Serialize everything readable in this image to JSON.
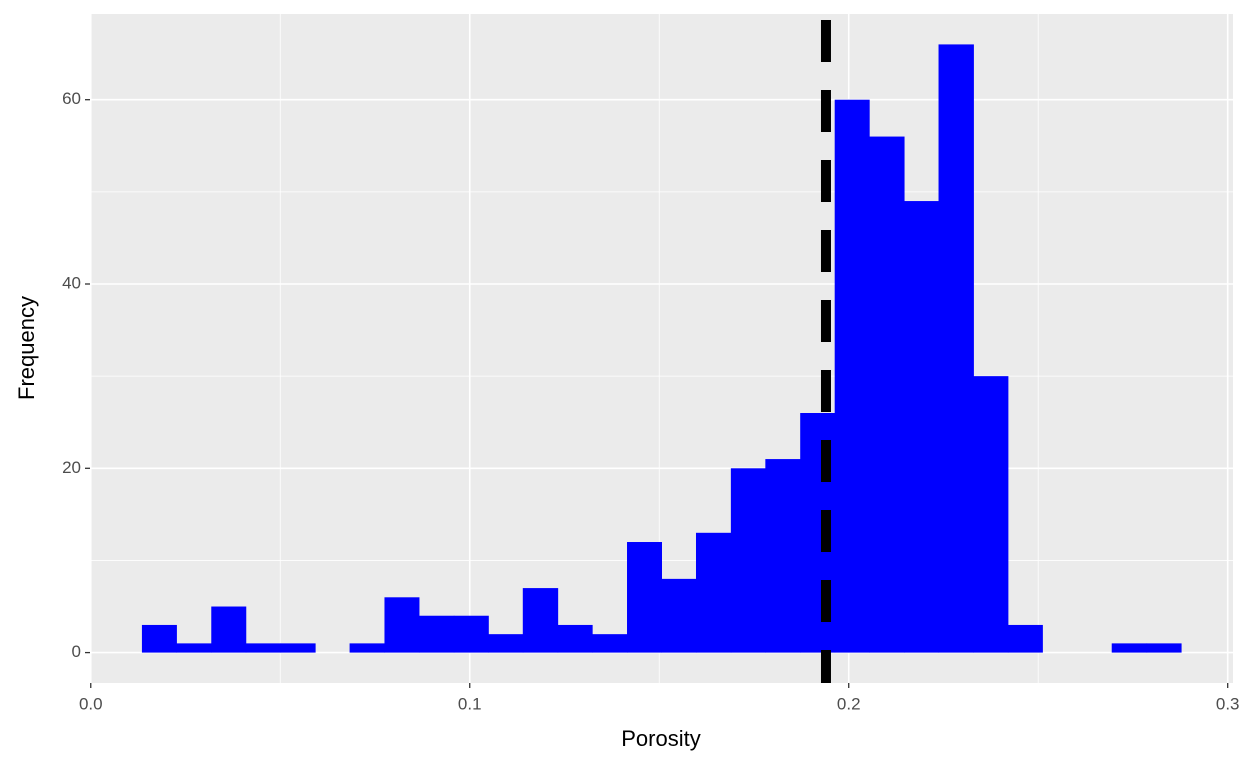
{
  "chart_data": {
    "type": "histogram",
    "x_label": "Porosity",
    "y_label": "Frequency",
    "bins": [
      0.0135,
      0.0226,
      0.0318,
      0.0409,
      0.0501,
      0.0592,
      0.0683,
      0.0775,
      0.0866,
      0.0958,
      0.1049,
      0.114,
      0.1232,
      0.1323,
      0.1415,
      0.1506,
      0.1597,
      0.1689,
      0.178,
      0.1872,
      0.1963,
      0.2054,
      0.2146,
      0.2237,
      0.2329,
      0.242,
      0.2511,
      0.2603,
      0.2694,
      0.2786,
      0.2877
    ],
    "counts": [
      3,
      1,
      5,
      1,
      1,
      0,
      1,
      6,
      4,
      4,
      2,
      7,
      3,
      2,
      12,
      8,
      13,
      20,
      21,
      26,
      60,
      56,
      49,
      66,
      30,
      3,
      0,
      0,
      1,
      1
    ],
    "color": "#0000ff",
    "vline": 0.194,
    "vline_color": "#000000",
    "xlim": [
      -0.0002,
      0.3014
    ],
    "xticks": [
      {
        "value": 0,
        "label": "0.0"
      },
      0.1,
      0.2,
      0.3
    ],
    "x_minor_ticks": [
      0.05,
      0.15,
      0.25
    ],
    "ylim": [
      -3.3,
      69.3
    ],
    "yticks": [
      0,
      20,
      40,
      60
    ],
    "y_minor_ticks": [
      10,
      30,
      50
    ],
    "grid": true
  }
}
